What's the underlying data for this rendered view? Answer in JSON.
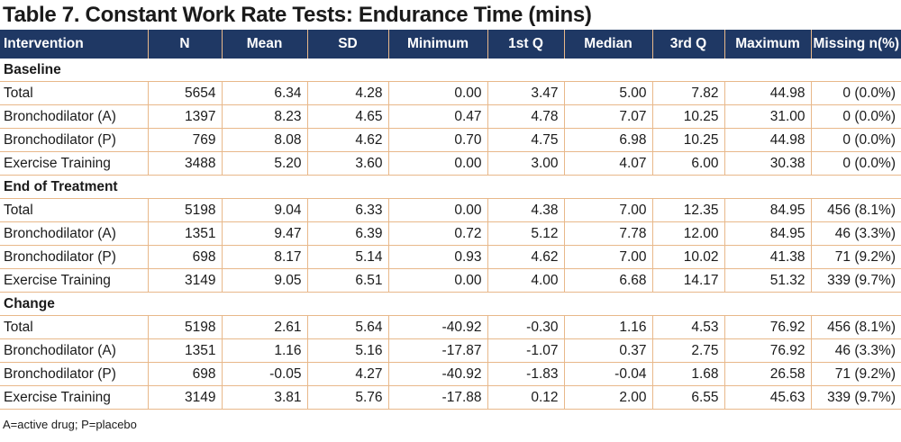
{
  "title": "Table 7. Constant Work Rate Tests: Endurance Time (mins)",
  "columns": [
    "Intervention",
    "N",
    "Mean",
    "SD",
    "Minimum",
    "1st Q",
    "Median",
    "3rd Q",
    "Maximum",
    "Missing n(%)"
  ],
  "sections": [
    {
      "label": "Baseline",
      "rows": [
        [
          "Total",
          "5654",
          "6.34",
          "4.28",
          "0.00",
          "3.47",
          "5.00",
          "7.82",
          "44.98",
          "0 (0.0%)"
        ],
        [
          "Bronchodilator (A)",
          "1397",
          "8.23",
          "4.65",
          "0.47",
          "4.78",
          "7.07",
          "10.25",
          "31.00",
          "0 (0.0%)"
        ],
        [
          "Bronchodilator (P)",
          "769",
          "8.08",
          "4.62",
          "0.70",
          "4.75",
          "6.98",
          "10.25",
          "44.98",
          "0 (0.0%)"
        ],
        [
          "Exercise Training",
          "3488",
          "5.20",
          "3.60",
          "0.00",
          "3.00",
          "4.07",
          "6.00",
          "30.38",
          "0 (0.0%)"
        ]
      ]
    },
    {
      "label": "End of Treatment",
      "rows": [
        [
          "Total",
          "5198",
          "9.04",
          "6.33",
          "0.00",
          "4.38",
          "7.00",
          "12.35",
          "84.95",
          "456 (8.1%)"
        ],
        [
          "Bronchodilator (A)",
          "1351",
          "9.47",
          "6.39",
          "0.72",
          "5.12",
          "7.78",
          "12.00",
          "84.95",
          "46 (3.3%)"
        ],
        [
          "Bronchodilator (P)",
          "698",
          "8.17",
          "5.14",
          "0.93",
          "4.62",
          "7.00",
          "10.02",
          "41.38",
          "71 (9.2%)"
        ],
        [
          "Exercise Training",
          "3149",
          "9.05",
          "6.51",
          "0.00",
          "4.00",
          "6.68",
          "14.17",
          "51.32",
          "339 (9.7%)"
        ]
      ]
    },
    {
      "label": "Change",
      "rows": [
        [
          "Total",
          "5198",
          "2.61",
          "5.64",
          "-40.92",
          "-0.30",
          "1.16",
          "4.53",
          "76.92",
          "456 (8.1%)"
        ],
        [
          "Bronchodilator (A)",
          "1351",
          "1.16",
          "5.16",
          "-17.87",
          "-1.07",
          "0.37",
          "2.75",
          "76.92",
          "46 (3.3%)"
        ],
        [
          "Bronchodilator (P)",
          "698",
          "-0.05",
          "4.27",
          "-40.92",
          "-1.83",
          "-0.04",
          "1.68",
          "26.58",
          "71 (9.2%)"
        ],
        [
          "Exercise Training",
          "3149",
          "3.81",
          "5.76",
          "-17.88",
          "0.12",
          "2.00",
          "6.55",
          "45.63",
          "339 (9.7%)"
        ]
      ]
    }
  ],
  "footnote": "A=active drug; P=placebo"
}
